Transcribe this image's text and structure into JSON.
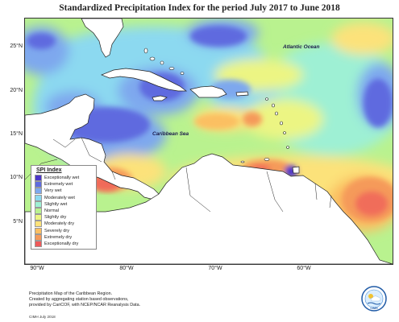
{
  "title": "Standardized Precipitation Index for the period July 2017 to June 2018",
  "axes": {
    "lat_labels": [
      "25°N",
      "20°N",
      "15°N",
      "10°N",
      "5°N"
    ],
    "lon_labels": [
      "90°W",
      "80°W",
      "70°W",
      "60°W"
    ]
  },
  "map_labels": {
    "atlantic": "Atlantic Ocean",
    "caribbean": "Caribbean Sea"
  },
  "legend": {
    "title": "SPI Index",
    "items": [
      {
        "label": "Exceptionally wet",
        "color": "#4b35c9"
      },
      {
        "label": "Extremely wet",
        "color": "#5f6bdf"
      },
      {
        "label": "Very wet",
        "color": "#7ea8ee"
      },
      {
        "label": "Moderately wet",
        "color": "#8cd9f0"
      },
      {
        "label": "Slightly wet",
        "color": "#9ef0d4"
      },
      {
        "label": "Normal",
        "color": "#b9f28f"
      },
      {
        "label": "Slightly dry",
        "color": "#ecf583"
      },
      {
        "label": "Moderately dry",
        "color": "#fce27a"
      },
      {
        "label": "Severely dry",
        "color": "#fbbf62"
      },
      {
        "label": "Extremely dry",
        "color": "#f59a5a"
      },
      {
        "label": "Exceptionally dry",
        "color": "#ef5a5a"
      }
    ]
  },
  "credit": {
    "line1": "Precipitation Map of the Caribbean Region.",
    "line2": "Created by aggregating station based observations,",
    "line3": "provided by CariCOF, with NCEP/NCAR Reanalysis Data.",
    "date": "CIMH July 2018"
  },
  "logo_text": "CIMH"
}
